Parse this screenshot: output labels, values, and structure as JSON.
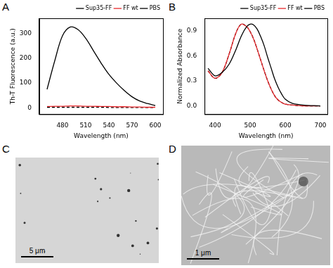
{
  "chart_data": [
    {
      "panel_label": "A",
      "type": "line",
      "x_label": "Wavelength (nm)",
      "y_label": "Th-T Fluorescence (a.u.)",
      "x": [
        460,
        470,
        480,
        490,
        500,
        510,
        520,
        530,
        540,
        550,
        560,
        570,
        580,
        590,
        600
      ],
      "series": [
        {
          "name": "Sup35-FF",
          "color": "#000000",
          "line_style": "solid",
          "values": [
            75,
            190,
            290,
            325,
            315,
            280,
            230,
            180,
            135,
            100,
            70,
            45,
            28,
            18,
            10
          ]
        },
        {
          "name": "FF wt",
          "color": "#e8262a",
          "line_style": "solid",
          "values": [
            6,
            7,
            7,
            8,
            8,
            7,
            7,
            6,
            6,
            5,
            5,
            4,
            4,
            3,
            3
          ]
        },
        {
          "name": "PBS",
          "color": "#000000",
          "line_style": "dashed",
          "values": [
            3,
            3,
            3,
            3,
            3,
            3,
            3,
            3,
            2,
            2,
            2,
            2,
            2,
            2,
            2
          ]
        }
      ],
      "xlim": [
        450,
        610
      ],
      "xticks": [
        480,
        510,
        540,
        570,
        600
      ],
      "ylim": [
        -25,
        360
      ],
      "yticks": [
        0,
        100,
        200,
        300
      ],
      "grid": false,
      "legend": "upper right"
    },
    {
      "panel_label": "B",
      "type": "line",
      "x_label": "Wavelength (nm)",
      "y_label": "Normalized Absorbance",
      "x": [
        380,
        400,
        420,
        440,
        460,
        475,
        490,
        500,
        510,
        520,
        530,
        540,
        550,
        560,
        570,
        580,
        590,
        600,
        620,
        650,
        700
      ],
      "series": [
        {
          "name": "Sup35-FF",
          "color": "#000000",
          "line_style": "solid",
          "values": [
            0.45,
            0.36,
            0.4,
            0.5,
            0.68,
            0.84,
            0.95,
            0.98,
            0.97,
            0.92,
            0.83,
            0.72,
            0.58,
            0.45,
            0.32,
            0.22,
            0.14,
            0.08,
            0.03,
            0.01,
            0.0
          ]
        },
        {
          "name": "FF wt",
          "color": "#e8262a",
          "line_style": "solid",
          "values": [
            0.42,
            0.33,
            0.4,
            0.62,
            0.88,
            0.98,
            0.95,
            0.89,
            0.8,
            0.68,
            0.55,
            0.42,
            0.3,
            0.2,
            0.12,
            0.07,
            0.04,
            0.02,
            0.01,
            0.0,
            0.0
          ]
        },
        {
          "name": "PBS",
          "color": "#000000",
          "line_style": "dashed",
          "values": [
            0.42,
            0.33,
            0.4,
            0.62,
            0.88,
            0.98,
            0.95,
            0.89,
            0.8,
            0.68,
            0.55,
            0.42,
            0.3,
            0.2,
            0.12,
            0.07,
            0.04,
            0.02,
            0.01,
            0.0,
            0.0
          ]
        }
      ],
      "xlim": [
        370,
        720
      ],
      "xticks": [
        400,
        500,
        600,
        700
      ],
      "ylim": [
        -0.1,
        1.05
      ],
      "yticks": [
        {
          "value": 0,
          "label": "0.0"
        },
        0.3,
        0.6,
        0.9
      ],
      "grid": false,
      "legend": "upper right"
    }
  ],
  "micrographs": [
    {
      "panel_label": "C",
      "scale_bar": "5 μm"
    },
    {
      "panel_label": "D",
      "scale_bar": "1 μm"
    }
  ]
}
